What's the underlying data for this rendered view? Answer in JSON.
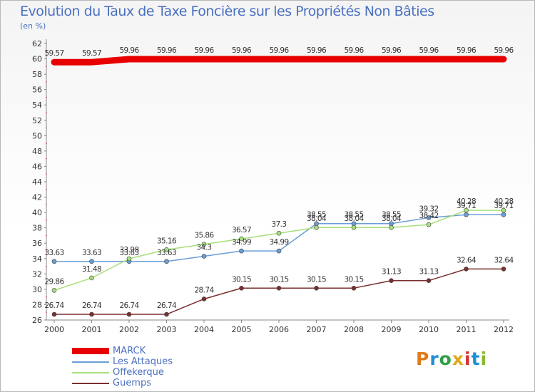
{
  "title": "Evolution du Taux de Taxe Foncière sur les Propriétés Non Bâties",
  "unit": "(en %)",
  "logo": {
    "text": "Proxiti",
    "colors": [
      "#e07b1a",
      "#1f8fd6",
      "#2ea043",
      "#e0a81a",
      "#d6312f",
      "#1f8fd6",
      "#8ab82f"
    ]
  },
  "chart_data": {
    "type": "line",
    "x": [
      "2000",
      "2001",
      "2002",
      "2003",
      "2004",
      "2005",
      "2006",
      "2007",
      "2008",
      "2009",
      "2010",
      "2011",
      "2012"
    ],
    "ylim": [
      26,
      62
    ],
    "yticks": [
      26,
      28,
      30,
      32,
      34,
      36,
      38,
      40,
      42,
      44,
      46,
      48,
      50,
      52,
      54,
      56,
      58,
      60,
      62
    ],
    "grid": false,
    "legend": "bottom-left",
    "series": [
      {
        "name": "MARCK",
        "color": "#e80000",
        "values": [
          59.57,
          59.57,
          59.96,
          59.96,
          59.96,
          59.96,
          59.96,
          59.96,
          59.96,
          59.96,
          59.96,
          59.96,
          59.96
        ]
      },
      {
        "name": "Les Attaques",
        "color": "#6a9ed6",
        "values": [
          33.63,
          33.63,
          33.63,
          33.63,
          34.3,
          34.99,
          34.99,
          38.55,
          38.55,
          38.55,
          39.32,
          39.71,
          39.71
        ]
      },
      {
        "name": "Offekerque",
        "color": "#a6e07a",
        "values": [
          29.86,
          31.48,
          33.98,
          35.16,
          35.86,
          36.57,
          37.3,
          38.04,
          38.04,
          38.04,
          38.42,
          40.28,
          40.28
        ]
      },
      {
        "name": "Guemps",
        "color": "#7a2f2f",
        "values": [
          26.74,
          26.74,
          26.74,
          26.74,
          28.74,
          30.15,
          30.15,
          30.15,
          30.15,
          31.13,
          31.13,
          32.64,
          32.64
        ]
      }
    ],
    "data_labels": [
      [
        "59.57",
        "59.57",
        "59.96",
        "59.96",
        "59.96",
        "59.96",
        "59.96",
        "59.96",
        "59.96",
        "59.96",
        "59.96",
        "59.96",
        "59.96"
      ],
      [
        "33.63",
        "33.63",
        "33.63",
        "33.63",
        "34.3",
        "34.99",
        "34.99",
        "38.55",
        "38.55",
        "38.55",
        "39.32",
        "39.71",
        "39.71"
      ],
      [
        "29.86",
        "31.48",
        "33.98",
        "35.16",
        "35.86",
        "36.57",
        "37.3",
        "38.04",
        "38.04",
        "38.04",
        "38.42",
        "40.28",
        "40.28"
      ],
      [
        "26.74",
        "26.74",
        "26.74",
        "26.74",
        "28.74",
        "30.15",
        "30.15",
        "30.15",
        "30.15",
        "31.13",
        "31.13",
        "32.64",
        "32.64"
      ]
    ]
  }
}
